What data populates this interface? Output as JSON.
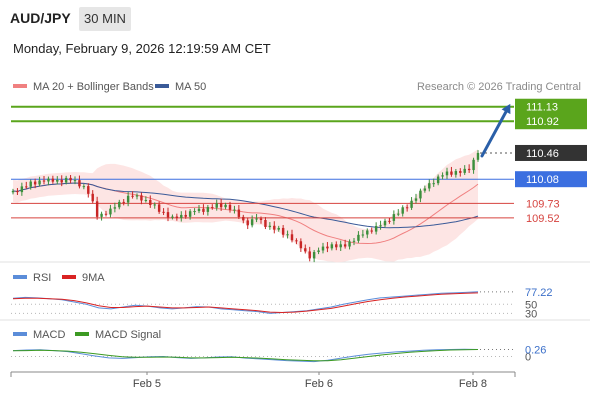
{
  "header": {
    "symbol": "AUD/JPY",
    "timeframe": "30 MIN",
    "timestamp": "Monday, February 9, 2026 12:19:59 AM CET"
  },
  "legend": {
    "ma20": {
      "label": "MA 20 + Bollinger Bands",
      "color": "#f08080"
    },
    "ma50": {
      "label": "MA 50",
      "color": "#3a5a98"
    },
    "source": "Research © 2026 Trading Central"
  },
  "colors": {
    "resistance": "#5aa51c",
    "support": "#d6433f",
    "pivot": "#3b6fe0",
    "price_tag": "#333333",
    "band_fill": "#fde0df",
    "candle_up": "#3c8f3c",
    "candle_down": "#c82626",
    "arrow": "#2a5fa8"
  },
  "chart_data": [
    {
      "type": "candlestick",
      "y_range": [
        108.88,
        111.3
      ],
      "x_labels": [
        "Feb 5",
        "Feb 6",
        "Feb 8"
      ],
      "close_path": [
        109.88,
        109.97,
        110.03,
        110.07,
        110.05,
        110.08,
        110.03,
        109.93,
        109.55,
        109.6,
        109.73,
        109.83,
        109.81,
        109.72,
        109.62,
        109.51,
        109.55,
        109.61,
        109.63,
        109.69,
        109.71,
        109.61,
        109.43,
        109.51,
        109.4,
        109.35,
        109.27,
        109.13,
        108.96,
        109.05,
        109.12,
        109.1,
        109.18,
        109.28,
        109.36,
        109.42,
        109.55,
        109.65,
        109.8,
        109.96,
        110.08,
        110.16,
        110.18,
        110.2,
        110.46
      ],
      "levels": [
        {
          "value": 111.13,
          "label": "111.13",
          "role": "resistance"
        },
        {
          "value": 110.92,
          "label": "110.92",
          "role": "resistance"
        },
        {
          "value": 110.46,
          "label": "110.46",
          "role": "last_price"
        },
        {
          "value": 110.08,
          "label": "110.08",
          "role": "pivot"
        },
        {
          "value": 109.73,
          "label": "109.73",
          "role": "support"
        },
        {
          "value": 109.52,
          "label": "109.52",
          "role": "support"
        }
      ],
      "series": [
        {
          "name": "MA 20 + Bollinger Bands",
          "color": "#f08080"
        },
        {
          "name": "MA 50",
          "color": "#3a5a98"
        }
      ]
    },
    {
      "type": "line",
      "y_range": [
        20,
        90
      ],
      "ticks": [
        50,
        30
      ],
      "last_value": "77.22",
      "series": [
        {
          "name": "RSI",
          "color": "#5b8dd9",
          "values": [
            63,
            65,
            64,
            62,
            60,
            55,
            50,
            42,
            40,
            44,
            48,
            46,
            42,
            40,
            42,
            45,
            44,
            40,
            38,
            36,
            34,
            30,
            32,
            34,
            36,
            40,
            44,
            50,
            55,
            60,
            64,
            66,
            68,
            70,
            72,
            74,
            75,
            76,
            77.22
          ]
        },
        {
          "name": "9MA",
          "color": "#d92323",
          "values": [
            62,
            63,
            63,
            62,
            61,
            58,
            53,
            47,
            43,
            43,
            45,
            46,
            44,
            42,
            42,
            43,
            44,
            42,
            40,
            38,
            36,
            33,
            32,
            33,
            35,
            38,
            41,
            46,
            51,
            56,
            60,
            63,
            66,
            68,
            70,
            72,
            73,
            74,
            75
          ]
        }
      ]
    },
    {
      "type": "line",
      "y_range": [
        -0.5,
        0.5
      ],
      "ticks": [
        0
      ],
      "last_value": "0.26",
      "series": [
        {
          "name": "MACD",
          "color": "#5b8dd9",
          "values": [
            0.22,
            0.24,
            0.25,
            0.22,
            0.18,
            0.1,
            0.02,
            -0.05,
            -0.07,
            -0.04,
            -0.01,
            0.0,
            -0.04,
            -0.07,
            -0.05,
            -0.02,
            -0.01,
            -0.06,
            -0.09,
            -0.12,
            -0.15,
            -0.17,
            -0.19,
            -0.14,
            -0.06,
            0.02,
            0.08,
            0.13,
            0.17,
            0.2,
            0.23,
            0.25,
            0.26,
            0.27,
            0.26
          ]
        },
        {
          "name": "MACD Signal",
          "color": "#3c9a23",
          "values": [
            0.21,
            0.22,
            0.23,
            0.22,
            0.2,
            0.16,
            0.1,
            0.04,
            -0.01,
            -0.03,
            -0.03,
            -0.02,
            -0.03,
            -0.05,
            -0.05,
            -0.04,
            -0.03,
            -0.04,
            -0.06,
            -0.09,
            -0.12,
            -0.14,
            -0.16,
            -0.16,
            -0.12,
            -0.06,
            0.0,
            0.06,
            0.11,
            0.16,
            0.19,
            0.22,
            0.24,
            0.25,
            0.26
          ]
        }
      ]
    }
  ],
  "rsi_legend": {
    "rsi": "RSI",
    "ma": "9MA"
  },
  "macd_legend": {
    "macd": "MACD",
    "signal": "MACD Signal"
  }
}
